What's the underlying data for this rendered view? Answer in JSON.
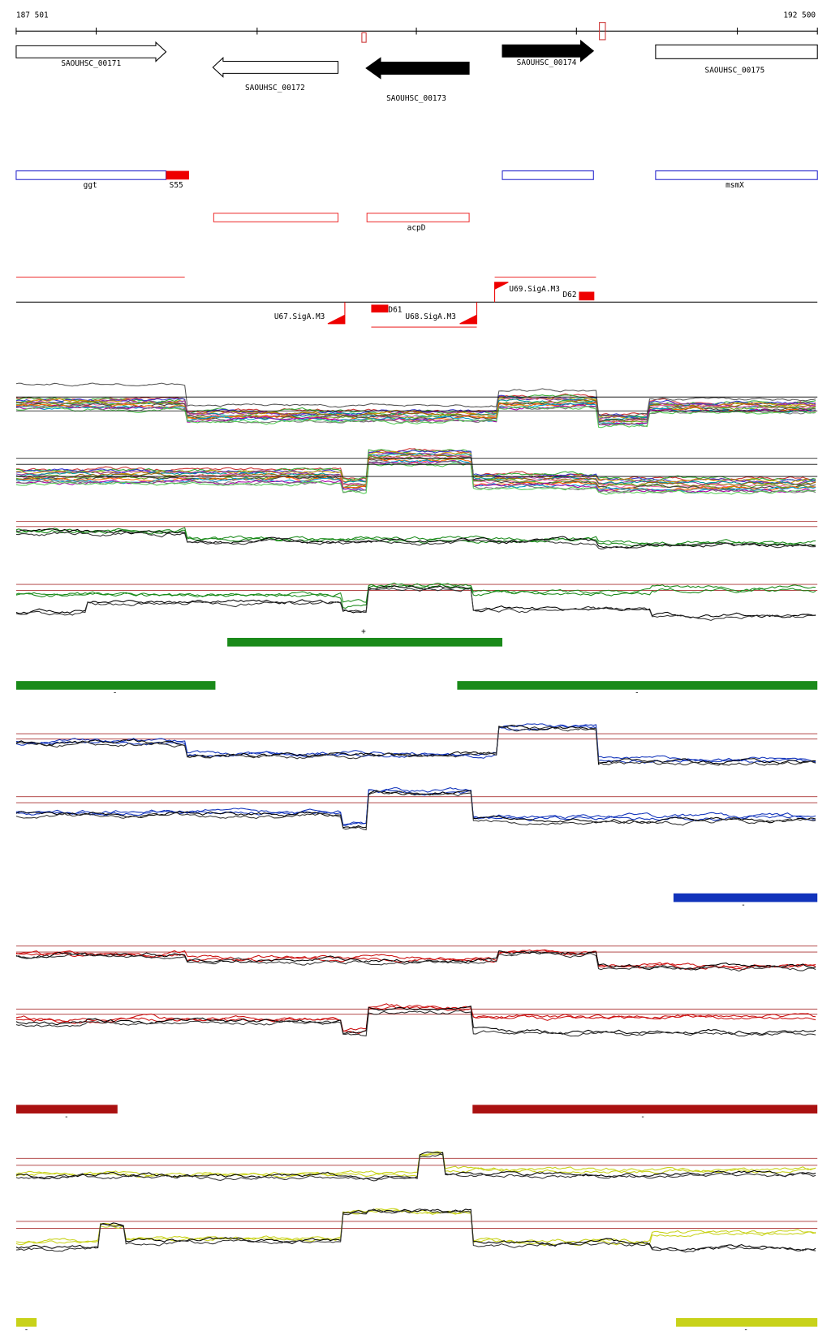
{
  "ruler": {
    "start": "187 501",
    "end": "192 500"
  },
  "genes": [
    {
      "label": "SAOUHSC_00171"
    },
    {
      "label": "SAOUHSC_00172"
    },
    {
      "label": "SAOUHSC_00173"
    },
    {
      "label": "SAOUHSC_00174"
    },
    {
      "label": "SAOUHSC_00175"
    }
  ],
  "annotations": [
    {
      "label": "ggt"
    },
    {
      "label": "S55"
    },
    {
      "label": "msmX"
    },
    {
      "label": "acpD"
    }
  ],
  "regulation": [
    {
      "label": "U69.SigA.M3"
    },
    {
      "label": "D62"
    },
    {
      "label": "U67.SigA.M3"
    },
    {
      "label": "D61"
    },
    {
      "label": "U68.SigA.M3"
    }
  ],
  "segments": [
    {
      "strand": "+"
    },
    {
      "strand": "-"
    },
    {
      "strand": "-"
    },
    {
      "strand": "-"
    },
    {
      "strand": "-"
    },
    {
      "strand": "-"
    },
    {
      "strand": "-"
    },
    {
      "strand": "-"
    }
  ]
}
